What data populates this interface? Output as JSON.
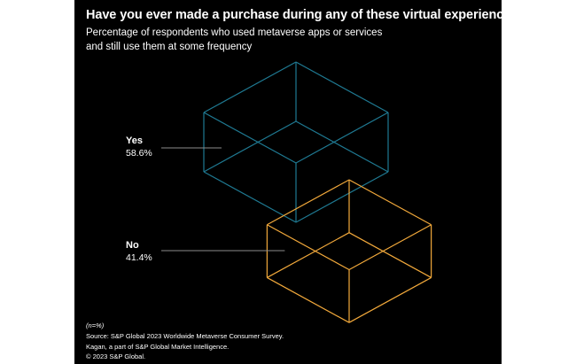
{
  "title": "Have you ever made a purchase during any of these virtual experiences?",
  "subtitle_lines": [
    "Percentage of respondents who used metaverse apps or services",
    "and still use them at some frequency"
  ],
  "colors": {
    "background": "#000000",
    "yes": "#1f7a93",
    "no": "#f2a93b",
    "leader": "#8c8c8c"
  },
  "chart_data": {
    "type": "pie",
    "categories": [
      "Yes",
      "No"
    ],
    "values": [
      58.6,
      41.4
    ],
    "value_labels": [
      "58.6%",
      "41.4%"
    ],
    "title": "Have you ever made a purchase during any of these virtual experiences?",
    "subtitle": "Percentage of respondents who used metaverse apps or services and still use them at some frequency",
    "note": "(n=%)"
  },
  "footnotes": {
    "n_note": "(n=%)",
    "source": "Source: S&P Global 2023 Worldwide Metaverse Consumer Survey.",
    "credit": "Kagan, a part of S&P Global Market Intelligence.",
    "copyright": "© 2023 S&P Global."
  }
}
